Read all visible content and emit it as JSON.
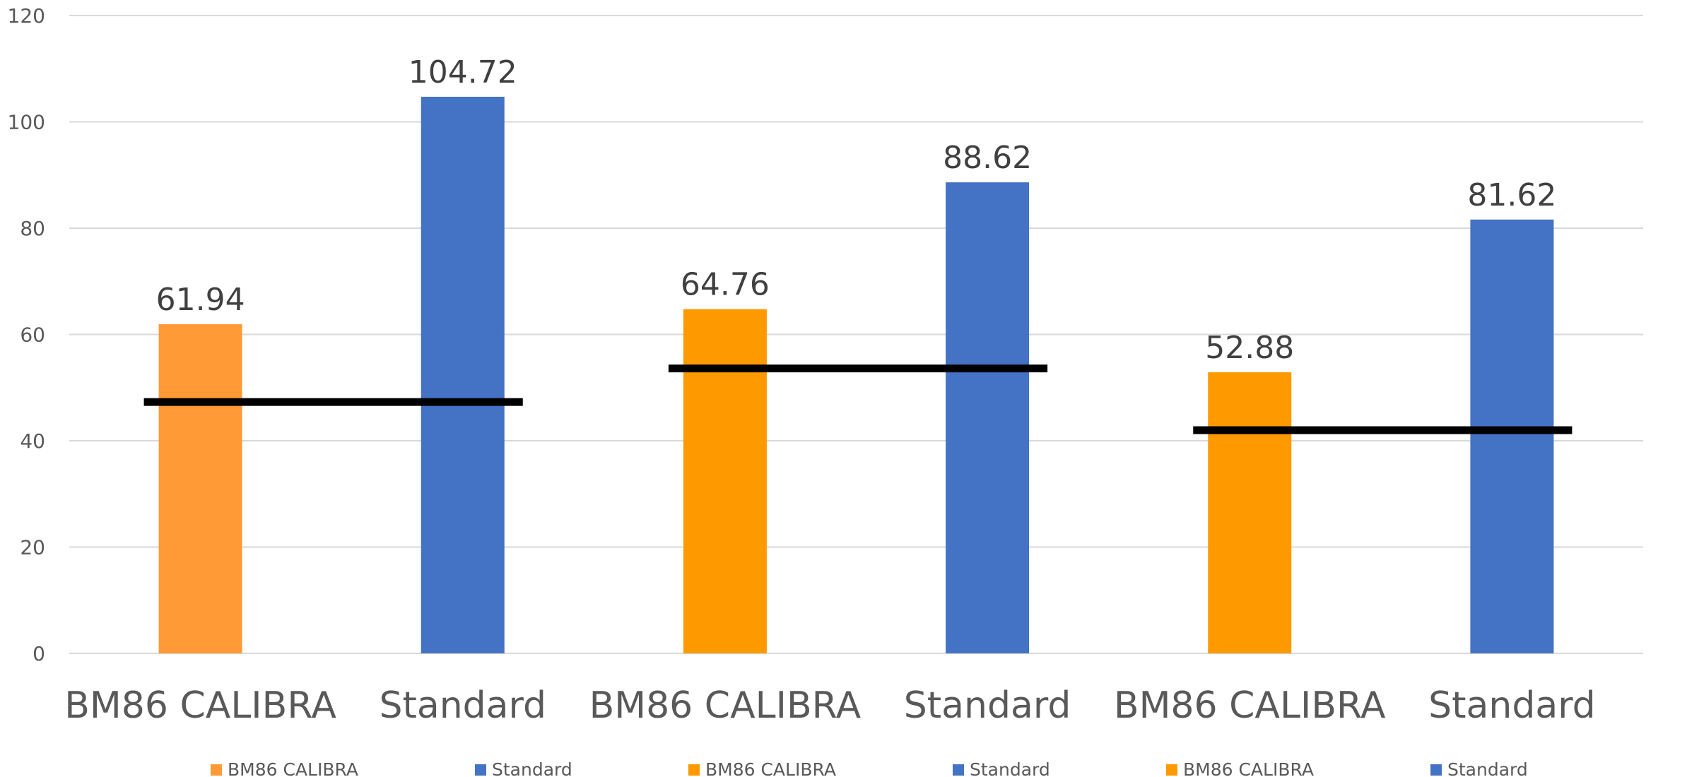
{
  "chart_data": {
    "type": "bar",
    "title": "",
    "xlabel": "",
    "ylabel": "",
    "ylim": [
      0,
      120
    ],
    "yticks": [
      0,
      20,
      40,
      60,
      80,
      100,
      120
    ],
    "grid": true,
    "legend_position": "bottom",
    "categories": [
      "BM86 CALIBRA",
      "Standard",
      "BM86 CALIBRA",
      "Standard",
      "BM86 CALIBRA",
      "Standard"
    ],
    "values": [
      61.94,
      104.72,
      64.76,
      88.62,
      52.88,
      81.62
    ],
    "data_labels": [
      "61.94",
      "104.72",
      "64.76",
      "88.62",
      "52.88",
      "81.62"
    ],
    "bar_colors": [
      "#ff9a36",
      "#4472c4",
      "#ff9900",
      "#4472c4",
      "#ff9900",
      "#4472c4"
    ],
    "reference_lines": [
      {
        "value": 47.3,
        "from_category": 0,
        "to_category": 1,
        "color": "#000000"
      },
      {
        "value": 53.6,
        "from_category": 2,
        "to_category": 3,
        "color": "#000000"
      },
      {
        "value": 42.0,
        "from_category": 4,
        "to_category": 5,
        "color": "#000000"
      }
    ],
    "legend": [
      {
        "label": "BM86 CALIBRA",
        "color": "#ff9a36"
      },
      {
        "label": "Standard",
        "color": "#4472c4"
      },
      {
        "label": "BM86 CALIBRA",
        "color": "#ff9900"
      },
      {
        "label": "Standard",
        "color": "#4472c4"
      },
      {
        "label": "BM86 CALIBRA",
        "color": "#ff9900"
      },
      {
        "label": "Standard",
        "color": "#4472c4"
      }
    ]
  }
}
